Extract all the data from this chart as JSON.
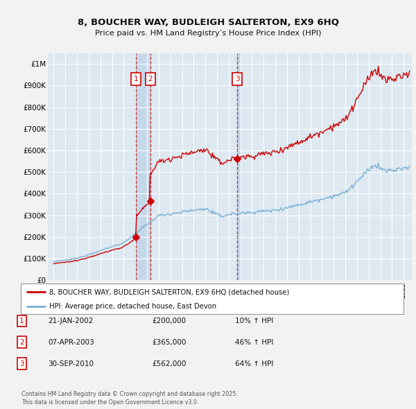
{
  "title_line1": "8, BOUCHER WAY, BUDLEIGH SALTERTON, EX9 6HQ",
  "title_line2": "Price paid vs. HM Land Registry’s House Price Index (HPI)",
  "sale_color": "#cc0000",
  "hpi_color": "#7aafd4",
  "bg_color": "#dde8f0",
  "fig_bg": "#f2f2f2",
  "grid_color": "#ffffff",
  "band_color": "#c5d8ea",
  "ylim": [
    0,
    1050000
  ],
  "yticks": [
    0,
    100000,
    200000,
    300000,
    400000,
    500000,
    600000,
    700000,
    800000,
    900000,
    1000000
  ],
  "ytick_labels": [
    "£0",
    "£100K",
    "£200K",
    "£300K",
    "£400K",
    "£500K",
    "£600K",
    "£700K",
    "£800K",
    "£900K",
    "£1M"
  ],
  "xlim": [
    1994.5,
    2025.7
  ],
  "sale_dates": [
    2002.055,
    2003.27,
    2010.747
  ],
  "sale_prices": [
    200000,
    365000,
    562000
  ],
  "sale_labels": [
    "1",
    "2",
    "3"
  ],
  "legend_sale": "8, BOUCHER WAY, BUDLEIGH SALTERTON, EX9 6HQ (detached house)",
  "legend_hpi": "HPI: Average price, detached house, East Devon",
  "table_entries": [
    {
      "num": "1",
      "date": "21-JAN-2002",
      "price": "£200,000",
      "change": "10% ↑ HPI"
    },
    {
      "num": "2",
      "date": "07-APR-2003",
      "price": "£365,000",
      "change": "46% ↑ HPI"
    },
    {
      "num": "3",
      "date": "30-SEP-2010",
      "price": "£562,000",
      "change": "64% ↑ HPI"
    }
  ],
  "footer": "Contains HM Land Registry data © Crown copyright and database right 2025.\nThis data is licensed under the Open Government Licence v3.0."
}
